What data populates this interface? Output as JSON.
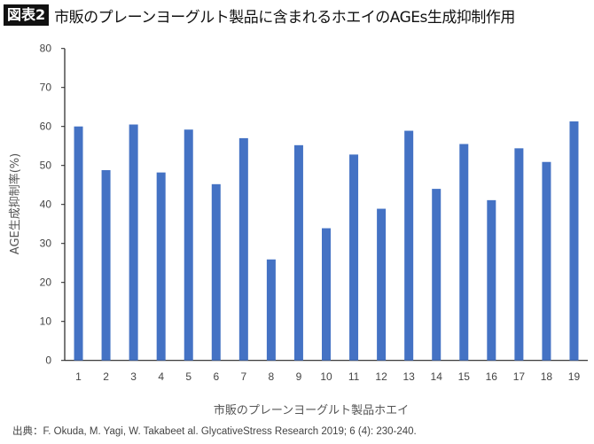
{
  "header": {
    "badge": "図表2",
    "title": "市販のプレーンヨーグルト製品に含まれるホエイのAGEs生成抑制作用"
  },
  "chart_data": {
    "type": "bar",
    "categories": [
      "1",
      "2",
      "3",
      "4",
      "5",
      "6",
      "7",
      "8",
      "9",
      "10",
      "11",
      "12",
      "13",
      "14",
      "15",
      "16",
      "17",
      "18",
      "19"
    ],
    "values": [
      60.0,
      48.8,
      60.5,
      48.2,
      59.2,
      45.2,
      57.0,
      25.9,
      55.2,
      33.9,
      52.8,
      38.9,
      58.9,
      44.0,
      55.5,
      41.1,
      54.4,
      50.9,
      61.3
    ],
    "xlabel": "市販のプレーンヨーグルト製品ホエイ",
    "ylabel": "AGE生成抑制率(%)",
    "ylim": [
      0,
      80
    ],
    "yticks": [
      0,
      10,
      20,
      30,
      40,
      50,
      60,
      70,
      80
    ],
    "grid": false,
    "bar_color": "#4472C4"
  },
  "source": "出典：F. Okuda, M. Yagi, W. Takabeet al. GlycativeStress Research 2019; 6 (4): 230-240."
}
